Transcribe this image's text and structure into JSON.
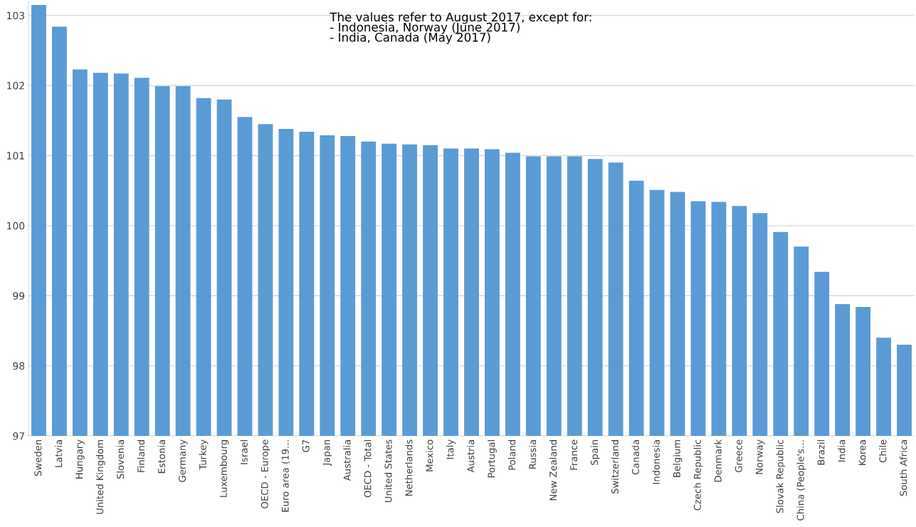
{
  "chart_data": {
    "type": "bar",
    "categories": [
      "Sweden",
      "Latvia",
      "Hungary",
      "United Kingdom",
      "Slovenia",
      "Finland",
      "Estonia",
      "Germany",
      "Turkey",
      "Luxembourg",
      "Israel",
      "OECD - Europe",
      "Euro area (19…",
      "G7",
      "Japan",
      "Australia",
      "OECD - Total",
      "United States",
      "Netherlands",
      "Mexico",
      "Italy",
      "Austria",
      "Portugal",
      "Poland",
      "Russia",
      "New Zealand",
      "France",
      "Spain",
      "Switzerland",
      "Canada",
      "Indonesia",
      "Belgium",
      "Czech Republic",
      "Denmark",
      "Greece",
      "Norway",
      "Slovak Republic",
      "China (People's…",
      "Brazil",
      "India",
      "Korea",
      "Chile",
      "South Africa"
    ],
    "values": [
      103.15,
      102.84,
      102.23,
      102.18,
      102.17,
      102.11,
      101.99,
      101.99,
      101.82,
      101.8,
      101.55,
      101.45,
      101.38,
      101.34,
      101.29,
      101.28,
      101.2,
      101.17,
      101.16,
      101.15,
      101.1,
      101.1,
      101.09,
      101.04,
      100.99,
      100.99,
      100.99,
      100.95,
      100.9,
      100.64,
      100.51,
      100.48,
      100.35,
      100.34,
      100.28,
      100.18,
      99.91,
      99.7,
      99.34,
      98.88,
      98.84,
      98.4,
      98.3
    ],
    "color": "#5b9bd5",
    "ylim": [
      97,
      103.2
    ],
    "yticks": [
      97,
      98,
      99,
      100,
      101,
      102,
      103
    ],
    "grid": "y",
    "annotations": [
      "The values refer to August 2017, except for:\n- Indonesia, Norway (June 2017)\n- India, Canada (May 2017)"
    ]
  }
}
